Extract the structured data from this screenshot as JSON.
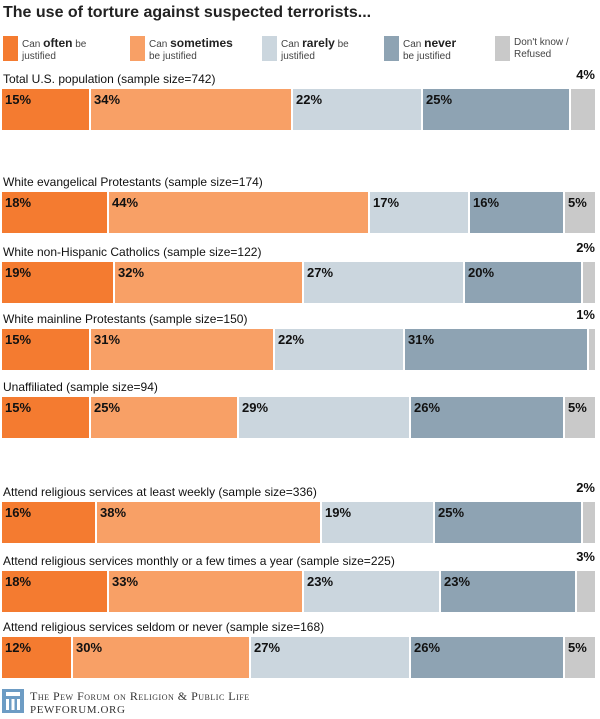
{
  "colors": {
    "often": "#f47b30",
    "sometimes": "#f8a066",
    "rarely": "#cbd6de",
    "never": "#8ea3b3",
    "dontknow": "#c9c9c9",
    "separator": "#ffffff",
    "logo": "#6d9cc4"
  },
  "chart_data": {
    "type": "bar",
    "orientation": "horizontal-stacked-100",
    "title": "The use of torture against suspected terrorists...",
    "series": [
      {
        "key": "often",
        "legend_pre": "Can ",
        "legend_bold": "often",
        "legend_post": " be",
        "legend_line2": "justified"
      },
      {
        "key": "sometimes",
        "legend_pre": "Can ",
        "legend_bold": "sometimes",
        "legend_post": "",
        "legend_line2": "be justified"
      },
      {
        "key": "rarely",
        "legend_pre": "Can ",
        "legend_bold": "rarely",
        "legend_post": " be",
        "legend_line2": "justified"
      },
      {
        "key": "never",
        "legend_pre": "Can ",
        "legend_bold": "never",
        "legend_post": "",
        "legend_line2": "be justified"
      },
      {
        "key": "dontknow",
        "legend_pre": "Don't know /",
        "legend_bold": "",
        "legend_post": "",
        "legend_line2": "Refused"
      }
    ],
    "categories": [
      "Total U.S. population (sample size=742)",
      "White evangelical Protestants (sample size=174)",
      "White non-Hispanic Catholics (sample size=122)",
      "White mainline Protestants (sample size=150)",
      "Unaffiliated (sample size=94)",
      "Attend religious services at least weekly (sample size=336)",
      "Attend religious services monthly or a few times a year (sample size=225)",
      "Attend religious services seldom or never (sample size=168)"
    ],
    "values": [
      [
        15,
        34,
        22,
        25,
        4
      ],
      [
        18,
        44,
        17,
        16,
        5
      ],
      [
        19,
        32,
        27,
        20,
        2
      ],
      [
        15,
        31,
        22,
        31,
        1
      ],
      [
        15,
        25,
        29,
        26,
        5
      ],
      [
        16,
        38,
        19,
        25,
        2
      ],
      [
        18,
        33,
        23,
        23,
        3
      ],
      [
        12,
        30,
        27,
        26,
        5
      ]
    ],
    "value_suffix": "%"
  },
  "footer": {
    "org": "The Pew Forum on Religion & Public Life",
    "url": "PEWFORUM.ORG"
  }
}
